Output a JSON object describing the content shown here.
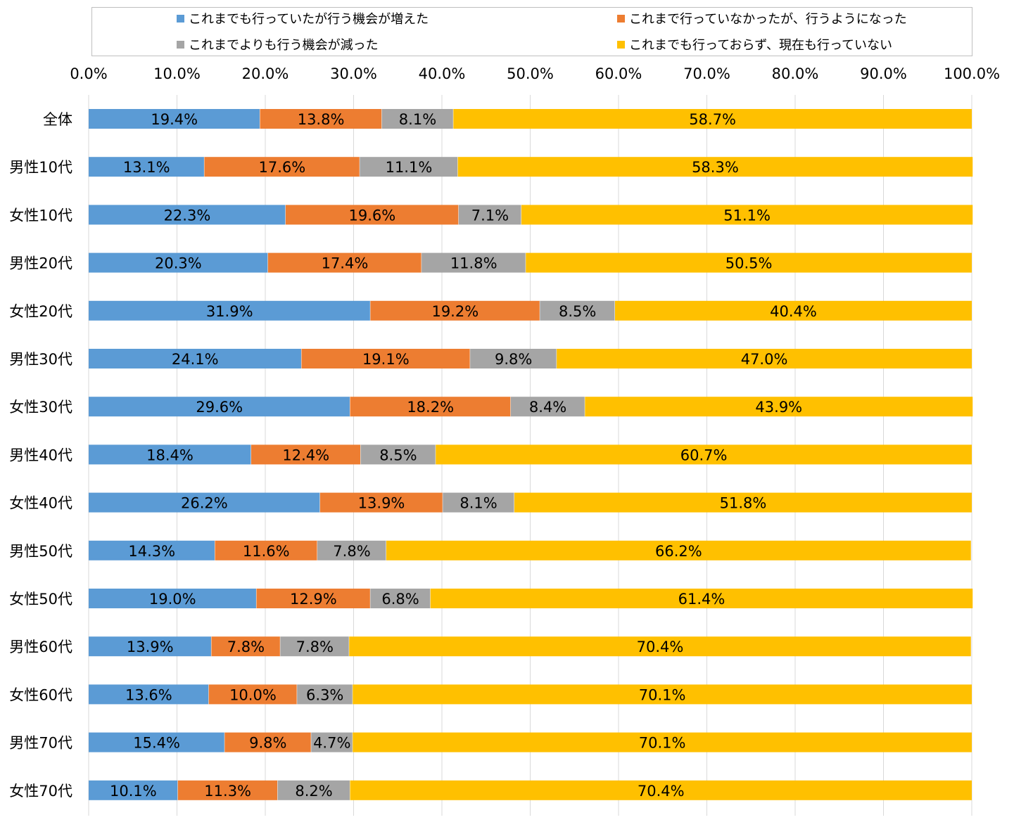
{
  "chart_data": {
    "type": "bar",
    "orientation": "horizontal",
    "stacked": "percent",
    "categories": [
      "全体",
      "男性10代",
      "女性10代",
      "男性20代",
      "女性20代",
      "男性30代",
      "女性30代",
      "男性40代",
      "女性40代",
      "男性50代",
      "女性50代",
      "男性60代",
      "女性60代",
      "男性70代",
      "女性70代"
    ],
    "series": [
      {
        "name": "これまでも行っていたが行う機会が増えた",
        "color": "#5b9bd5",
        "values": [
          19.4,
          13.1,
          22.3,
          20.3,
          31.9,
          24.1,
          29.6,
          18.4,
          26.2,
          14.3,
          19.0,
          13.9,
          13.6,
          15.4,
          10.1
        ]
      },
      {
        "name": "これまで行っていなかったが、行うようになった",
        "color": "#ed7d31",
        "values": [
          13.8,
          17.6,
          19.6,
          17.4,
          19.2,
          19.1,
          18.2,
          12.4,
          13.9,
          11.6,
          12.9,
          7.8,
          10.0,
          9.8,
          11.3
        ]
      },
      {
        "name": "これまでよりも行う機会が減った",
        "color": "#a5a5a5",
        "values": [
          8.1,
          11.1,
          7.1,
          11.8,
          8.5,
          9.8,
          8.4,
          8.5,
          8.1,
          7.8,
          6.8,
          7.8,
          6.3,
          4.7,
          8.2
        ]
      },
      {
        "name": "これまでも行っておらず、現在も行っていない",
        "color": "#ffc000",
        "values": [
          58.7,
          58.3,
          51.1,
          50.5,
          40.4,
          47.0,
          43.9,
          60.7,
          51.8,
          66.2,
          61.4,
          70.4,
          70.1,
          70.1,
          70.4
        ]
      }
    ],
    "data_labels": [
      [
        "19.4%",
        "13.1%",
        "22.3%",
        "20.3%",
        "31.9%",
        "24.1%",
        "29.6%",
        "18.4%",
        "26.2%",
        "14.3%",
        "19.0%",
        "13.9%",
        "13.6%",
        "15.4%",
        "10.1%"
      ],
      [
        "13.8%",
        "17.6%",
        "19.6%",
        "17.4%",
        "19.2%",
        "19.1%",
        "18.2%",
        "12.4%",
        "13.9%",
        "11.6%",
        "12.9%",
        "7.8%",
        "10.0%",
        "9.8%",
        "11.3%"
      ],
      [
        "8.1%",
        "11.1%",
        "7.1%",
        "11.8%",
        "8.5%",
        "9.8%",
        "8.4%",
        "8.5%",
        "8.1%",
        "7.8%",
        "6.8%",
        "7.8%",
        "6.3%",
        "4.7%",
        "8.2%"
      ],
      [
        "58.7%",
        "58.3%",
        "51.1%",
        "50.5%",
        "40.4%",
        "47.0%",
        "43.9%",
        "60.7%",
        "51.8%",
        "66.2%",
        "61.4%",
        "70.4%",
        "70.1%",
        "70.1%",
        "70.4%"
      ]
    ],
    "xlim": [
      0,
      100
    ],
    "xticks": [
      0,
      10,
      20,
      30,
      40,
      50,
      60,
      70,
      80,
      90,
      100
    ],
    "xtick_labels": [
      "0.0%",
      "10.0%",
      "20.0%",
      "30.0%",
      "40.0%",
      "50.0%",
      "60.0%",
      "70.0%",
      "80.0%",
      "90.0%",
      "100.0%"
    ],
    "x_axis_position": "top",
    "grid": true,
    "legend_position": "top",
    "title": "",
    "xlabel": "",
    "ylabel": ""
  }
}
